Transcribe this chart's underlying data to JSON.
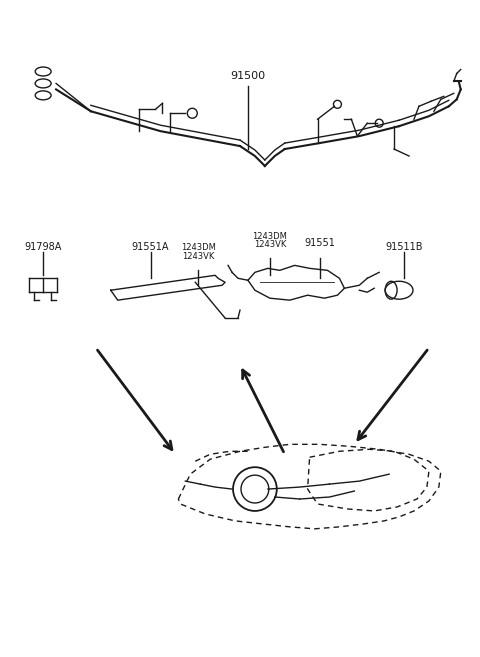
{
  "bg_color": "#ffffff",
  "line_color": "#1a1a1a",
  "label_color": "#111111",
  "figsize": [
    4.8,
    6.57
  ],
  "dpi": 100,
  "label_91500": "91500",
  "label_91798A": "91798A",
  "label_91551A": "91551A",
  "label_1243DM_a": "1243DM",
  "label_1243VK_a": "1243VK",
  "label_1243DM_b": "1243DM",
  "label_1243VK_b": "1243VK",
  "label_91551": "91551",
  "label_91511B": "91511B"
}
